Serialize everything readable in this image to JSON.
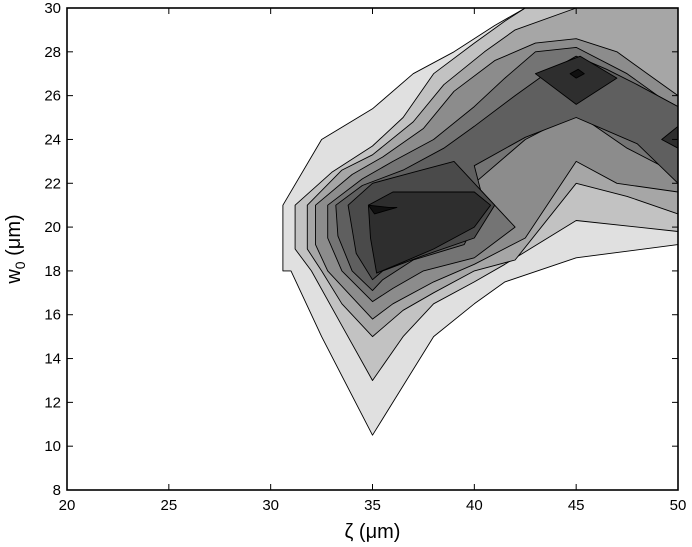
{
  "chart_data": {
    "type": "contour",
    "xlabel": "ζ (μm)",
    "ylabel_main": "w",
    "ylabel_sub": "0",
    "ylabel_unit": " (μm)",
    "xlim": [
      20,
      50
    ],
    "ylim": [
      8,
      30
    ],
    "xticks": [
      "20",
      "25",
      "30",
      "35",
      "40",
      "45",
      "50"
    ],
    "yticks": [
      "8",
      "10",
      "12",
      "14",
      "16",
      "18",
      "20",
      "22",
      "24",
      "26",
      "28",
      "30"
    ],
    "fill_levels": [
      "#ffffff",
      "#e0e0e0",
      "#c2c2c2",
      "#a6a6a6",
      "#8c8c8c",
      "#747474",
      "#5f5f5f",
      "#4a4a4a",
      "#2e2e2e",
      "#101010"
    ],
    "contours": [
      {
        "level": 1,
        "points": [
          [
            30.6,
            21.0
          ],
          [
            32.5,
            24.0
          ],
          [
            35.0,
            25.4
          ],
          [
            37.0,
            27.0
          ],
          [
            39.0,
            28.0
          ],
          [
            41.0,
            29.2
          ],
          [
            42.5,
            30.0
          ],
          [
            50.0,
            30.0
          ],
          [
            50.0,
            19.2
          ],
          [
            45.0,
            18.6
          ],
          [
            41.5,
            17.5
          ],
          [
            40.0,
            16.5
          ],
          [
            38.0,
            15.0
          ],
          [
            35.0,
            10.5
          ],
          [
            32.5,
            15.0
          ],
          [
            31.0,
            18.0
          ],
          [
            30.6,
            18.0
          ]
        ]
      },
      {
        "level": 2,
        "points": [
          [
            31.2,
            21.0
          ],
          [
            33.0,
            22.5
          ],
          [
            35.0,
            23.7
          ],
          [
            36.5,
            25.0
          ],
          [
            38.0,
            27.0
          ],
          [
            40.0,
            28.4
          ],
          [
            41.5,
            29.4
          ],
          [
            42.5,
            30.0
          ],
          [
            50.0,
            30.0
          ],
          [
            50.0,
            19.8
          ],
          [
            45.0,
            20.3
          ],
          [
            41.5,
            18.3
          ],
          [
            40.0,
            17.5
          ],
          [
            38.0,
            16.5
          ],
          [
            36.5,
            15.0
          ],
          [
            35.0,
            13.0
          ],
          [
            33.5,
            15.5
          ],
          [
            32.0,
            18.0
          ],
          [
            31.2,
            19.0
          ]
        ]
      },
      {
        "level": 3,
        "points": [
          [
            31.8,
            21.0
          ],
          [
            33.5,
            22.6
          ],
          [
            35.0,
            23.3
          ],
          [
            37.0,
            24.8
          ],
          [
            38.5,
            26.5
          ],
          [
            40.5,
            28.0
          ],
          [
            42.0,
            29.0
          ],
          [
            45.0,
            30.0
          ],
          [
            50.0,
            30.0
          ],
          [
            50.0,
            20.6
          ],
          [
            47.5,
            21.4
          ],
          [
            45.0,
            22.0
          ],
          [
            42.0,
            18.5
          ],
          [
            40.0,
            18.0
          ],
          [
            38.0,
            17.0
          ],
          [
            36.5,
            16.2
          ],
          [
            35.0,
            15.0
          ],
          [
            33.5,
            16.5
          ],
          [
            32.5,
            18.0
          ],
          [
            31.8,
            19.0
          ]
        ]
      },
      {
        "level": 4,
        "points": [
          [
            32.2,
            21.0
          ],
          [
            34.0,
            22.4
          ],
          [
            35.5,
            23.2
          ],
          [
            37.5,
            24.5
          ],
          [
            39.0,
            26.2
          ],
          [
            41.0,
            27.6
          ],
          [
            43.0,
            28.4
          ],
          [
            45.0,
            28.6
          ],
          [
            47.0,
            28.0
          ],
          [
            48.5,
            27.0
          ],
          [
            50.0,
            26.0
          ],
          [
            50.0,
            21.6
          ],
          [
            47.0,
            22.0
          ],
          [
            45.0,
            23.0
          ],
          [
            42.5,
            19.5
          ],
          [
            40.0,
            18.3
          ],
          [
            38.0,
            17.5
          ],
          [
            36.0,
            16.5
          ],
          [
            35.0,
            15.8
          ],
          [
            34.0,
            16.8
          ],
          [
            32.8,
            18.0
          ],
          [
            32.2,
            19.2
          ]
        ]
      },
      {
        "level": 5,
        "points": [
          [
            32.8,
            21.0
          ],
          [
            34.5,
            22.2
          ],
          [
            36.0,
            23.0
          ],
          [
            38.0,
            24.0
          ],
          [
            40.0,
            25.5
          ],
          [
            41.5,
            26.8
          ],
          [
            43.0,
            28.0
          ],
          [
            45.0,
            28.2
          ],
          [
            47.5,
            27.0
          ],
          [
            49.0,
            26.0
          ],
          [
            50.0,
            25.5
          ],
          [
            50.0,
            22.4
          ],
          [
            47.5,
            23.6
          ],
          [
            45.0,
            25.2
          ],
          [
            42.5,
            24.0
          ],
          [
            40.0,
            22.0
          ],
          [
            42.0,
            20.0
          ],
          [
            40.0,
            18.6
          ],
          [
            37.5,
            18.0
          ],
          [
            36.0,
            17.2
          ],
          [
            35.0,
            16.6
          ],
          [
            33.5,
            18.0
          ],
          [
            32.8,
            19.5
          ]
        ]
      },
      {
        "level": 6,
        "points": [
          [
            33.2,
            21.0
          ],
          [
            34.5,
            21.9
          ],
          [
            36.5,
            22.6
          ],
          [
            38.5,
            23.6
          ],
          [
            40.0,
            24.6
          ],
          [
            42.0,
            26.0
          ],
          [
            43.5,
            27.0
          ],
          [
            45.0,
            27.8
          ],
          [
            46.5,
            27.2
          ],
          [
            48.0,
            26.5
          ],
          [
            50.0,
            25.5
          ],
          [
            50.0,
            22.0
          ],
          [
            48.0,
            23.8
          ],
          [
            45.0,
            25.0
          ],
          [
            42.5,
            24.1
          ],
          [
            40.0,
            22.8
          ],
          [
            40.5,
            21.0
          ],
          [
            39.5,
            19.2
          ],
          [
            37.0,
            18.5
          ],
          [
            35.5,
            17.6
          ],
          [
            35.0,
            17.1
          ],
          [
            34.0,
            18.0
          ],
          [
            33.3,
            19.6
          ]
        ]
      },
      {
        "level": 7,
        "points": [
          [
            33.8,
            21.0
          ],
          [
            35.0,
            22.0
          ],
          [
            37.0,
            22.5
          ],
          [
            39.0,
            23.0
          ],
          [
            41.0,
            21.0
          ],
          [
            40.0,
            19.5
          ],
          [
            37.5,
            18.7
          ],
          [
            35.5,
            18.0
          ],
          [
            35.0,
            17.6
          ],
          [
            34.2,
            18.8
          ]
        ]
      },
      {
        "level": 8,
        "points": [
          [
            34.8,
            21.0
          ],
          [
            36.0,
            21.6
          ],
          [
            38.0,
            21.6
          ],
          [
            40.0,
            21.6
          ],
          [
            40.8,
            21.0
          ],
          [
            40.0,
            20.0
          ],
          [
            38.0,
            19.0
          ],
          [
            36.5,
            18.4
          ],
          [
            35.2,
            17.9
          ],
          [
            34.9,
            19.5
          ]
        ]
      },
      {
        "level": 8,
        "points": [
          [
            43.0,
            27.0
          ],
          [
            45.2,
            27.8
          ],
          [
            47.0,
            26.8
          ],
          [
            45.0,
            25.6
          ]
        ]
      },
      {
        "level": 8,
        "points": [
          [
            50.0,
            24.6
          ],
          [
            49.2,
            24.0
          ],
          [
            50.0,
            23.6
          ]
        ]
      },
      {
        "level": 9,
        "points": [
          [
            34.8,
            21.0
          ],
          [
            35.8,
            20.9
          ],
          [
            36.2,
            20.9
          ],
          [
            35.1,
            20.6
          ]
        ]
      },
      {
        "level": 9,
        "points": [
          [
            44.7,
            27.0
          ],
          [
            45.1,
            27.2
          ],
          [
            45.4,
            27.0
          ],
          [
            45.0,
            26.8
          ]
        ]
      }
    ]
  }
}
